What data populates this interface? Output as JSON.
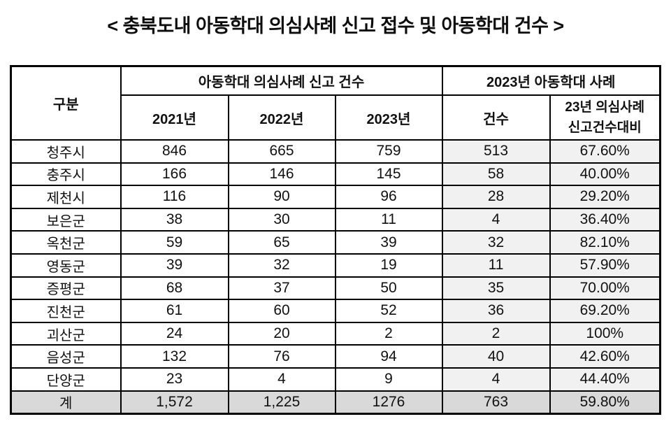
{
  "chart_data": {
    "type": "table",
    "title": "< 충북도내 아동학대 의심사례 신고 접수 및 아동학대 건수 >",
    "header": {
      "category": "구분",
      "group_reports": "아동학대 의심사례 신고 건수",
      "group_cases_2023": "2023년 아동학대 사례",
      "col_2021": "2021년",
      "col_2022": "2022년",
      "col_2023": "2023년",
      "col_count": "건수",
      "col_ratio_line1": "23년 의심사례",
      "col_ratio_line2": "신고건수대비"
    },
    "rows": [
      [
        "청주시",
        "846",
        "665",
        "759",
        "513",
        "67.60%"
      ],
      [
        "충주시",
        "166",
        "146",
        "145",
        "58",
        "40.00%"
      ],
      [
        "제천시",
        "116",
        "90",
        "96",
        "28",
        "29.20%"
      ],
      [
        "보은군",
        "38",
        "30",
        "11",
        "4",
        "36.40%"
      ],
      [
        "옥천군",
        "59",
        "65",
        "39",
        "32",
        "82.10%"
      ],
      [
        "영동군",
        "39",
        "32",
        "19",
        "11",
        "57.90%"
      ],
      [
        "증평군",
        "68",
        "37",
        "50",
        "35",
        "70.00%"
      ],
      [
        "진천군",
        "61",
        "60",
        "52",
        "36",
        "69.20%"
      ],
      [
        "괴산군",
        "24",
        "20",
        "2",
        "2",
        "100%"
      ],
      [
        "음성군",
        "132",
        "76",
        "94",
        "40",
        "42.60%"
      ],
      [
        "단양군",
        "23",
        "4",
        "9",
        "4",
        "44.40%"
      ]
    ],
    "total_row": [
      "계",
      "1,572",
      "1,225",
      "1276",
      "763",
      "59.80%"
    ],
    "layout": {
      "legend": "none",
      "grid": "full table grid, dashed divider before last column",
      "shaded_columns": [
        "건수",
        "23년 의심사례 신고건수대비"
      ],
      "shaded_total_row": "계"
    }
  },
  "colors": {
    "background": "#ffffff",
    "border": "#000000",
    "text": "#111111",
    "shaded_column_bg": "#f1f1f1",
    "total_row_bg": "#d9d9d9"
  }
}
